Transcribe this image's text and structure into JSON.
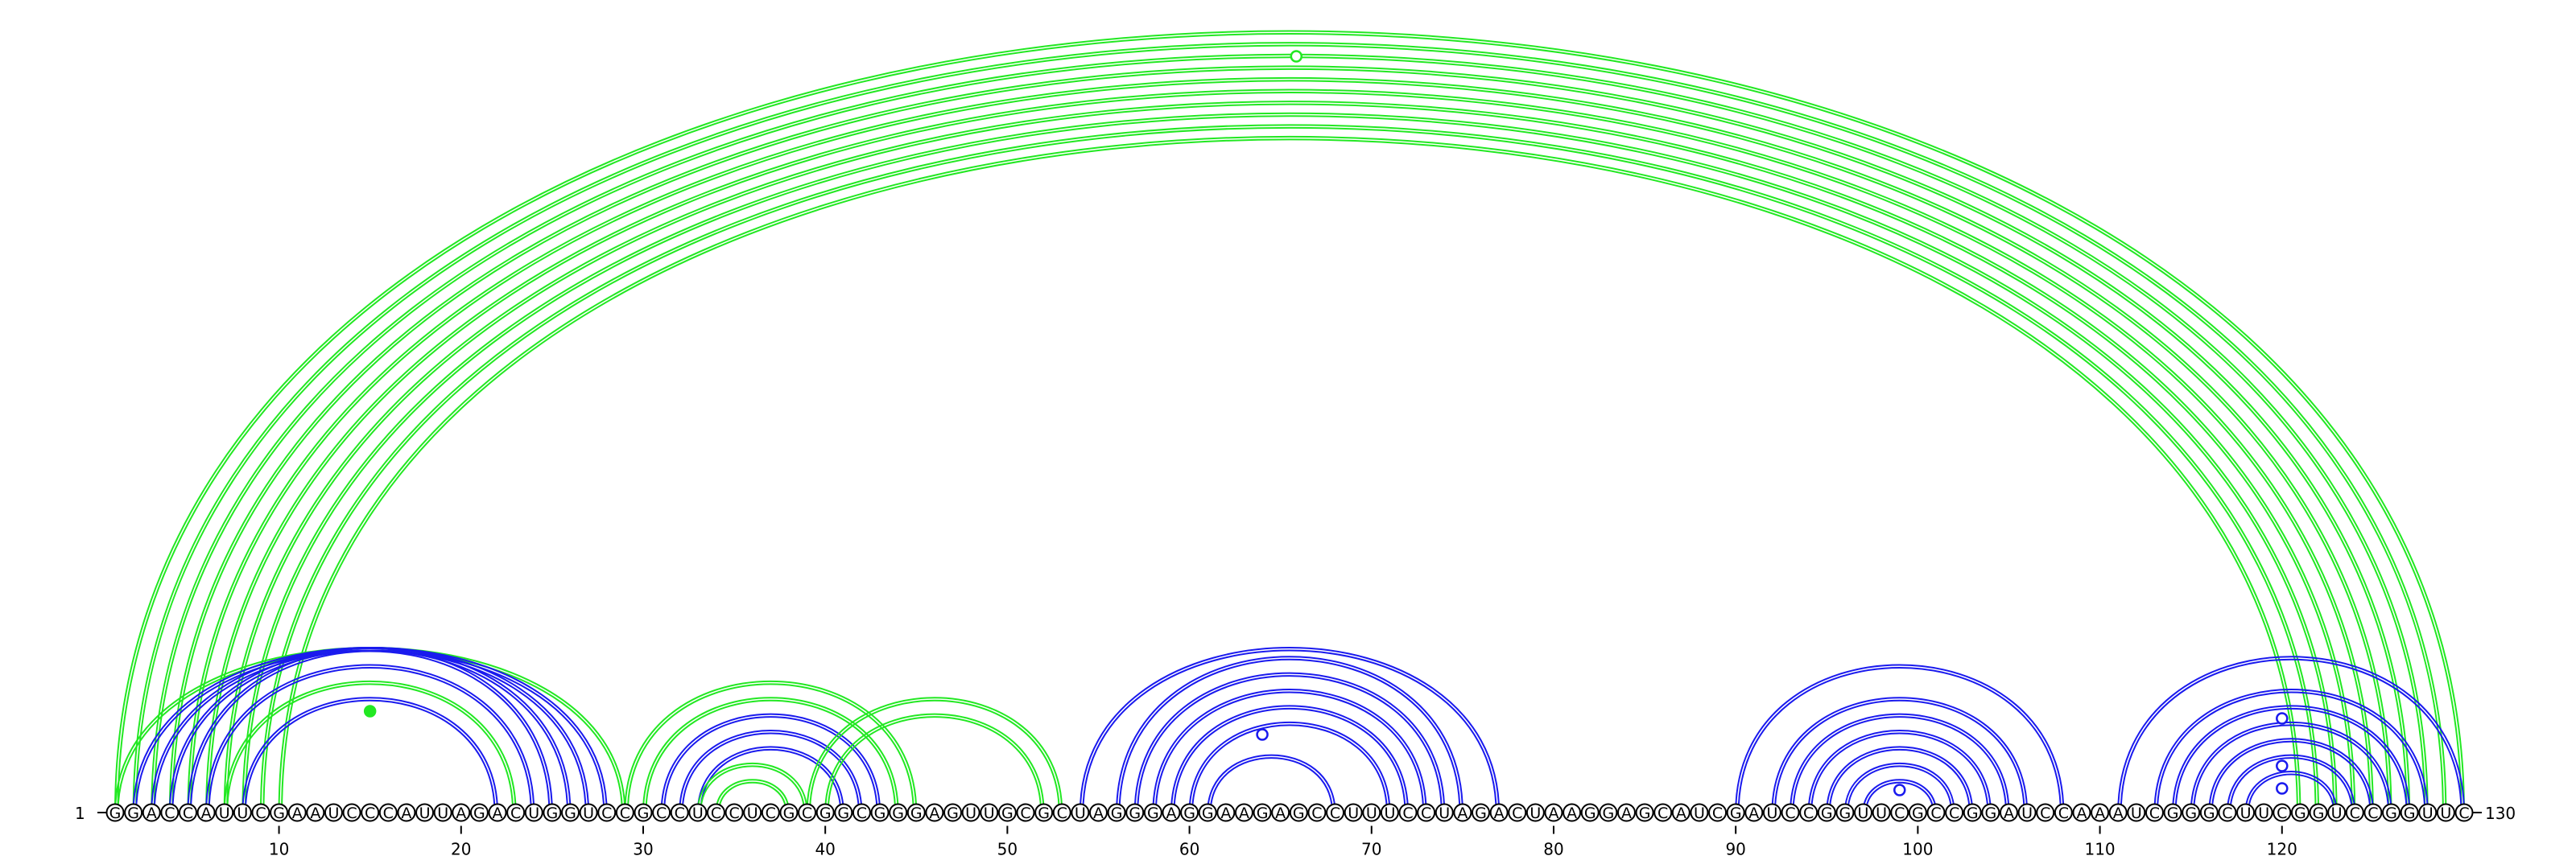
{
  "sequence": "GGACCAUUCGAAUCCCAUUAGACUGGUCCGCCUCCUCGCGGCGGGAGUUGCGCUAGGGAGGAAGAGCCUUUCCUAGACUAAGGAGCAUCGAUCCGGUUCGCCGGAUCCAAAUCGGGCUUCGGUCCGGUUC",
  "start_label": "1",
  "end_label": "130",
  "tick_labels": [
    "10",
    "20",
    "30",
    "40",
    "50",
    "60",
    "70",
    "80",
    "90",
    "100",
    "110",
    "120"
  ],
  "colors": {
    "green": "#22e822",
    "blue": "#1a1aee"
  },
  "arc_groups": [
    {
      "color": "green",
      "style": "double",
      "pairs": [
        [
          1,
          130
        ],
        [
          2,
          129
        ],
        [
          3,
          128
        ],
        [
          4,
          127
        ],
        [
          5,
          126
        ],
        [
          6,
          125
        ],
        [
          7,
          124
        ],
        [
          8,
          123
        ],
        [
          9,
          122
        ],
        [
          10,
          121
        ]
      ]
    },
    {
      "color": "green",
      "style": "double",
      "pairs": [
        [
          1,
          29
        ]
      ]
    },
    {
      "color": "blue",
      "style": "double",
      "pairs": [
        [
          2,
          28
        ],
        [
          3,
          27
        ],
        [
          4,
          26
        ],
        [
          5,
          25
        ],
        [
          6,
          24
        ]
      ]
    },
    {
      "color": "green",
      "style": "double",
      "pairs": [
        [
          7,
          23
        ]
      ]
    },
    {
      "color": "blue",
      "style": "double",
      "pairs": [
        [
          8,
          22
        ]
      ]
    },
    {
      "color": "green",
      "style": "double",
      "pairs": [
        [
          29,
          45
        ],
        [
          30,
          44
        ]
      ]
    },
    {
      "color": "blue",
      "style": "double",
      "pairs": [
        [
          31,
          43
        ],
        [
          32,
          42
        ],
        [
          33,
          41
        ]
      ]
    },
    {
      "color": "green",
      "style": "double",
      "pairs": [
        [
          33,
          39
        ],
        [
          34,
          38
        ]
      ]
    },
    {
      "color": "green",
      "style": "double",
      "pairs": [
        [
          39,
          53
        ],
        [
          40,
          52
        ]
      ]
    },
    {
      "color": "blue",
      "style": "double",
      "pairs": [
        [
          54,
          77
        ],
        [
          56,
          75
        ],
        [
          57,
          74
        ],
        [
          58,
          73
        ],
        [
          59,
          72
        ],
        [
          60,
          71
        ],
        [
          61,
          68
        ]
      ]
    },
    {
      "color": "blue",
      "style": "double",
      "pairs": [
        [
          90,
          108
        ],
        [
          92,
          106
        ],
        [
          93,
          105
        ],
        [
          94,
          104
        ],
        [
          95,
          103
        ],
        [
          96,
          102
        ],
        [
          97,
          101
        ]
      ]
    },
    {
      "color": "blue",
      "style": "double",
      "pairs": [
        [
          111,
          130
        ],
        [
          113,
          128
        ],
        [
          114,
          127
        ],
        [
          115,
          126
        ],
        [
          116,
          125
        ],
        [
          117,
          124
        ],
        [
          118,
          123
        ]
      ]
    }
  ],
  "markers": [
    {
      "pos": 66,
      "level": "top",
      "color": "green",
      "filled": false
    },
    {
      "pos": 15,
      "level": "mid",
      "color": "green",
      "filled": true
    },
    {
      "pos": 64,
      "level": "mid",
      "color": "blue",
      "filled": false
    },
    {
      "pos": 99,
      "level": "low",
      "color": "blue",
      "filled": false
    },
    {
      "pos": 120,
      "level": "mid",
      "color": "blue",
      "filled": false
    },
    {
      "pos": 120,
      "level": "low",
      "color": "blue",
      "filled": false
    },
    {
      "pos": 120,
      "level": "lower",
      "color": "blue",
      "filled": false
    }
  ]
}
